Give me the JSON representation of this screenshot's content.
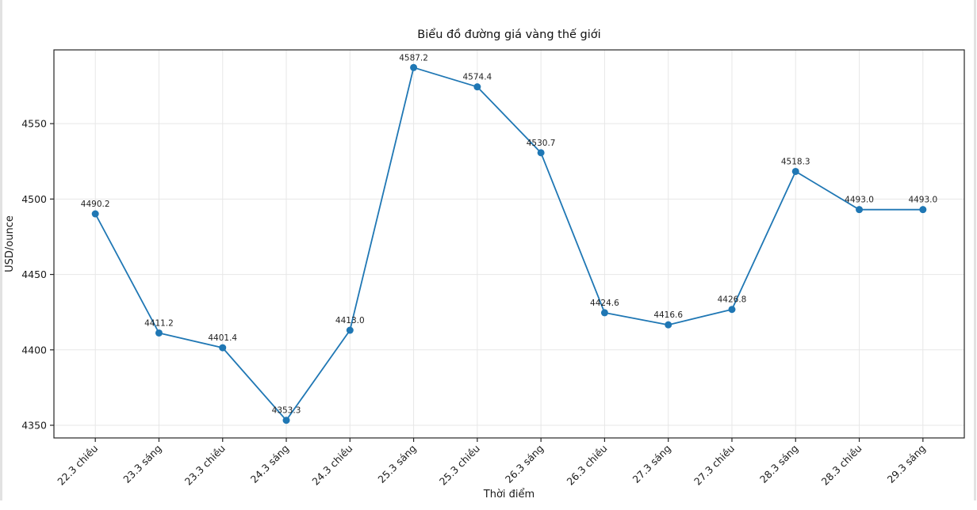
{
  "page": {
    "background_color": "#ffffff",
    "edge_border_color": "#e2e2e2"
  },
  "chart_data": {
    "type": "line",
    "title": "Biểu đồ đường giá vàng thế giới",
    "xlabel": "Thời điểm",
    "ylabel": "USD/ounce",
    "categories": [
      "22.3 chiều",
      "23.3 sáng",
      "23.3 chiều",
      "24.3 sáng",
      "24.3 chiều",
      "25.3 sáng",
      "25.3 chiều",
      "26.3 sáng",
      "26.3 chiều",
      "27.3 sáng",
      "27.3 chiều",
      "28.3 sáng",
      "28.3 chiều",
      "29.3 sáng"
    ],
    "values": [
      4490.2,
      4411.2,
      4401.4,
      4353.3,
      4413.0,
      4587.2,
      4574.4,
      4530.7,
      4424.6,
      4416.6,
      4426.8,
      4518.3,
      4493.0,
      4493.0
    ],
    "data_labels": [
      "4490.2",
      "4411.2",
      "4401.4",
      "4353.3",
      "4413.0",
      "4587.2",
      "4574.4",
      "4530.7",
      "4424.6",
      "4416.6",
      "4426.8",
      "4518.3",
      "4493.0",
      "4493.0"
    ],
    "yticks": [
      4350,
      4400,
      4450,
      4500,
      4550
    ],
    "ylim": [
      4341.6,
      4598.9
    ],
    "xtick_rotation_deg": 45,
    "grid": true,
    "legend_position": "none",
    "line_color": "#1f77b4",
    "marker_color": "#1f77b4",
    "grid_color": "#e7e7e7",
    "frame_color": "#262626",
    "text_color": "#1a1a1a"
  }
}
